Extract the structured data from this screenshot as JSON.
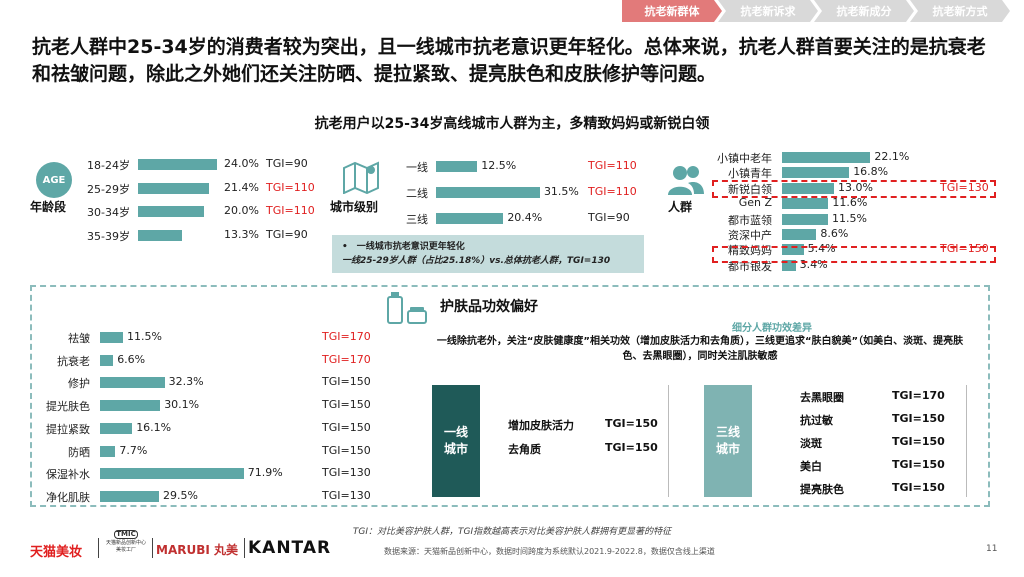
{
  "tabs": [
    "抗老新群体",
    "抗老新诉求",
    "抗老新成分",
    "抗老新方式"
  ],
  "headline": "抗老人群中25-34岁的消费者较为突出，且一线城市抗老意识更年轻化。总体来说，抗老人群首要关注的是抗衰老和祛皱问题，除此之外她们还关注防晒、提拉紧致、提亮肤色和皮肤修护等问题。",
  "subtitle": "抗老用户以25-34岁高线城市人群为主，多精致妈妈或新锐白领",
  "age": {
    "icon_text": "AGE",
    "name": "年龄段",
    "rows": [
      {
        "label": "18-24岁",
        "pct": 24.0,
        "value": "24.0%",
        "tgi": "TGI=90",
        "highlight": false
      },
      {
        "label": "25-29岁",
        "pct": 21.4,
        "value": "21.4%",
        "tgi": "TGI=110",
        "highlight": true
      },
      {
        "label": "30-34岁",
        "pct": 20.0,
        "value": "20.0%",
        "tgi": "TGI=110",
        "highlight": true
      },
      {
        "label": "35-39岁",
        "pct": 13.3,
        "value": "13.3%",
        "tgi": "TGI=90",
        "highlight": false
      }
    ]
  },
  "city": {
    "name": "城市级别",
    "rows": [
      {
        "label": "一线",
        "pct": 12.5,
        "value": "12.5%",
        "tgi": "TGI=110",
        "highlight": true
      },
      {
        "label": "二线",
        "pct": 31.5,
        "value": "31.5%",
        "tgi": "TGI=110",
        "highlight": true
      },
      {
        "label": "三线",
        "pct": 20.4,
        "value": "20.4%",
        "tgi": "TGI=90",
        "highlight": false
      }
    ],
    "note_line1": "•　一线城市抗老意识更年轻化",
    "note_line2": "一线25-29岁人群（占比25.18%）vs.总体抗老人群，TGI=130"
  },
  "people": {
    "name": "人群",
    "rows": [
      {
        "label": "小镇中老年",
        "pct": 22.1,
        "value": "22.1%",
        "tgi": ""
      },
      {
        "label": "小镇青年",
        "pct": 16.8,
        "value": "16.8%",
        "tgi": ""
      },
      {
        "label": "新锐白领",
        "pct": 13.0,
        "value": "13.0%",
        "tgi": "TGI=130"
      },
      {
        "label": "Gen Z",
        "pct": 11.6,
        "value": "11.6%",
        "tgi": ""
      },
      {
        "label": "都市蓝领",
        "pct": 11.5,
        "value": "11.5%",
        "tgi": ""
      },
      {
        "label": "资深中产",
        "pct": 8.6,
        "value": "8.6%",
        "tgi": ""
      },
      {
        "label": "精致妈妈",
        "pct": 5.4,
        "value": "5.4%",
        "tgi": "TGI=150"
      },
      {
        "label": "都市银发",
        "pct": 3.4,
        "value": "3.4%",
        "tgi": ""
      }
    ]
  },
  "benefits": {
    "title": "护肤品功效偏好",
    "rows": [
      {
        "label": "祛皱",
        "pct": 11.5,
        "value": "11.5%",
        "tgi": "TGI=170",
        "highlight": true
      },
      {
        "label": "抗衰老",
        "pct": 6.6,
        "value": "6.6%",
        "tgi": "TGI=170",
        "highlight": true
      },
      {
        "label": "修护",
        "pct": 32.3,
        "value": "32.3%",
        "tgi": "TGI=150",
        "highlight": false
      },
      {
        "label": "提光肤色",
        "pct": 30.1,
        "value": "30.1%",
        "tgi": "TGI=150",
        "highlight": false
      },
      {
        "label": "提拉紧致",
        "pct": 16.1,
        "value": "16.1%",
        "tgi": "TGI=150",
        "highlight": false
      },
      {
        "label": "防晒",
        "pct": 7.7,
        "value": "7.7%",
        "tgi": "TGI=150",
        "highlight": false
      },
      {
        "label": "保湿补水",
        "pct": 71.9,
        "value": "71.9%",
        "tgi": "TGI=130",
        "highlight": false
      },
      {
        "label": "净化肌肤",
        "pct": 29.5,
        "value": "29.5%",
        "tgi": "TGI=130",
        "highlight": false
      }
    ]
  },
  "segment": {
    "title": "细分人群功效差异",
    "desc": "一线除抗老外，关注“皮肤健康度”相关功效（增加皮肤活力和去角质），三线更追求“肤白貌美”（如美白、淡斑、提亮肤色、去黑眼圈），同时关注肌肤敏感",
    "tier1": {
      "label": "一线城市",
      "items": [
        {
          "name": "增加皮肤活力",
          "tgi": "TGI=150"
        },
        {
          "name": "去角质",
          "tgi": "TGI=150"
        }
      ]
    },
    "tier3": {
      "label": "三线城市",
      "items": [
        {
          "name": "去黑眼圈",
          "tgi": "TGI=170"
        },
        {
          "name": "抗过敏",
          "tgi": "TGI=150"
        },
        {
          "name": "淡斑",
          "tgi": "TGI=150"
        },
        {
          "name": "美白",
          "tgi": "TGI=150"
        },
        {
          "name": "提亮肤色",
          "tgi": "TGI=150"
        }
      ]
    }
  },
  "footnote": "TGI：对比美容护肤人群，TGI指数越高表示对比美容护肤人群拥有更显著的特征",
  "source": "数据来源：天猫新品创新中心，数据时间跨度为系统默认2021.9-2022.8，数据仅含线上渠道",
  "page_number": "11",
  "logos": {
    "tmall": "天猫美妆",
    "tmic_mark": "TMIC",
    "tmic_text": "天猫新品创新中心 美妆工厂",
    "marubi": "MARUBI 丸美",
    "kantar": "KANTAR"
  },
  "colors": {
    "bar": "#5ea7a6",
    "tier1": "#1f5a58",
    "tier3": "#7fb3b2",
    "highlight": "#e02020",
    "active_tab": "#e27a7a"
  }
}
